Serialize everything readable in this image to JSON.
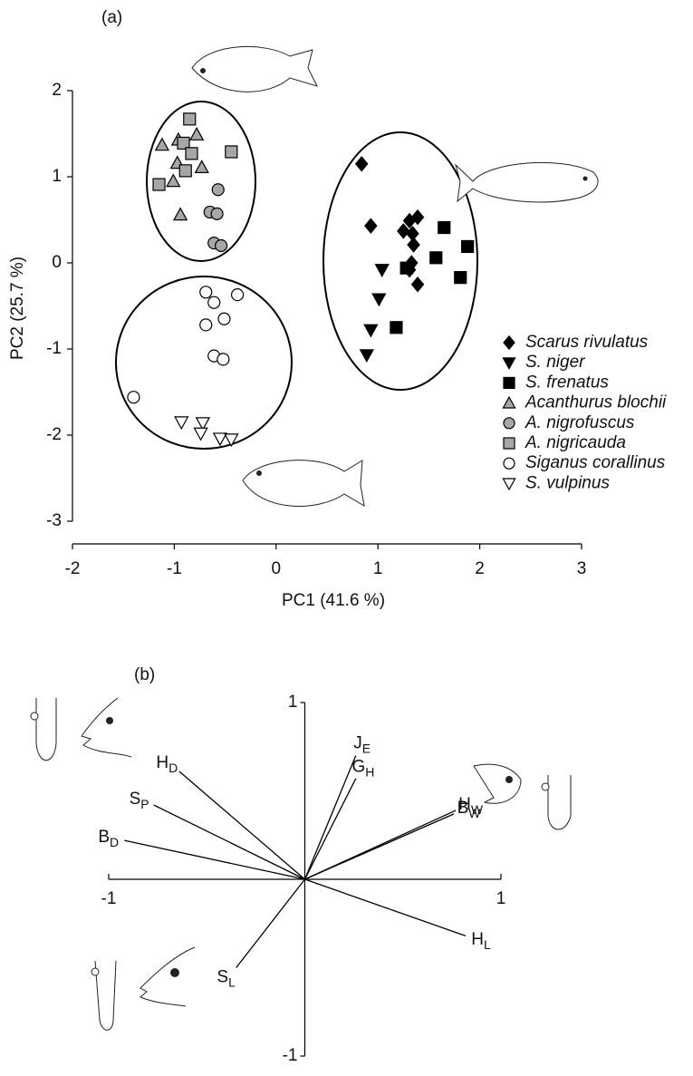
{
  "chart_data": [
    {
      "type": "scatter",
      "panel": "(a)",
      "x_label": "PC1 (41.6 %)",
      "y_label": "PC2 (25.7 %)",
      "xlim": [
        -2,
        3
      ],
      "ylim": [
        -3,
        2
      ],
      "xticks": [
        -2,
        -1,
        0,
        1,
        2,
        3
      ],
      "yticks": [
        -3,
        -2,
        -1,
        0,
        1,
        2
      ],
      "series": [
        {
          "name": "Scarus rivulatus",
          "marker": "diamond",
          "color": "#000000",
          "x": [
            0.84,
            0.93,
            1.25,
            1.31,
            1.39,
            1.34,
            1.35,
            1.33,
            1.31,
            1.39
          ],
          "y": [
            1.15,
            0.43,
            0.37,
            0.49,
            0.53,
            0.34,
            0.21,
            0.0,
            -0.08,
            -0.25
          ]
        },
        {
          "name": "S. niger",
          "marker": "triangle-down",
          "color": "#000000",
          "x": [
            1.04,
            1.01,
            0.93,
            0.89
          ],
          "y": [
            -0.08,
            -0.42,
            -0.78,
            -1.07
          ]
        },
        {
          "name": "S. frenatus",
          "marker": "square",
          "color": "#000000",
          "x": [
            1.65,
            1.88,
            1.57,
            1.28,
            1.81,
            1.18
          ],
          "y": [
            0.41,
            0.19,
            0.06,
            -0.06,
            -0.17,
            -0.75
          ]
        },
        {
          "name": "Acanthurus blochii",
          "marker": "triangle-up",
          "color": "#a6a6a6",
          "x": [
            -1.12,
            -0.78,
            -0.96,
            -0.97,
            -0.73,
            -1.01,
            -0.94
          ],
          "y": [
            1.37,
            1.49,
            1.43,
            1.16,
            1.11,
            0.95,
            0.56
          ]
        },
        {
          "name": "A. nigrofuscus",
          "marker": "circle",
          "color": "#a6a6a6",
          "x": [
            -0.57,
            -0.65,
            -0.58,
            -0.61,
            -0.54
          ],
          "y": [
            0.85,
            0.59,
            0.57,
            0.23,
            0.2
          ]
        },
        {
          "name": "A. nigricauda",
          "marker": "square",
          "color": "#a6a6a6",
          "x": [
            -0.85,
            -0.91,
            -0.83,
            -0.89,
            -0.44,
            -1.15
          ],
          "y": [
            1.67,
            1.39,
            1.27,
            1.07,
            1.29,
            0.91
          ]
        },
        {
          "name": "Siganus corallinus",
          "marker": "circle",
          "color": "#ffffff",
          "x": [
            -0.69,
            -0.61,
            -0.38,
            -0.51,
            -0.69,
            -0.61,
            -0.52,
            -1.4
          ],
          "y": [
            -0.34,
            -0.46,
            -0.37,
            -0.65,
            -0.72,
            -1.08,
            -1.12,
            -1.56
          ]
        },
        {
          "name": "S. vulpinus",
          "marker": "triangle-down",
          "color": "#ffffff",
          "x": [
            -0.93,
            -0.72,
            -0.74,
            -0.55,
            -0.44
          ],
          "y": [
            -1.85,
            -1.86,
            -1.98,
            -2.04,
            -2.05
          ]
        }
      ]
    },
    {
      "type": "biplot",
      "panel": "(b)",
      "xlim": [
        -1,
        1
      ],
      "ylim": [
        -1,
        1
      ],
      "xticks": [
        -1,
        1
      ],
      "yticks": [
        -1,
        1
      ],
      "vectors": [
        {
          "name": "H",
          "subscript": "D",
          "x": -0.64,
          "y": 0.61
        },
        {
          "name": "S",
          "subscript": "P",
          "x": -0.77,
          "y": 0.42
        },
        {
          "name": "B",
          "subscript": "D",
          "x": -0.92,
          "y": 0.22
        },
        {
          "name": "J",
          "subscript": "E",
          "x": 0.26,
          "y": 0.7
        },
        {
          "name": "G",
          "subscript": "H",
          "x": 0.26,
          "y": 0.57
        },
        {
          "name": "H",
          "subscript": "W",
          "x": 0.77,
          "y": 0.39
        },
        {
          "name": "B",
          "subscript": "W",
          "x": 0.76,
          "y": 0.37
        },
        {
          "name": "H",
          "subscript": "L",
          "x": 0.82,
          "y": -0.32
        },
        {
          "name": "S",
          "subscript": "L",
          "x": -0.35,
          "y": -0.5
        }
      ]
    }
  ]
}
